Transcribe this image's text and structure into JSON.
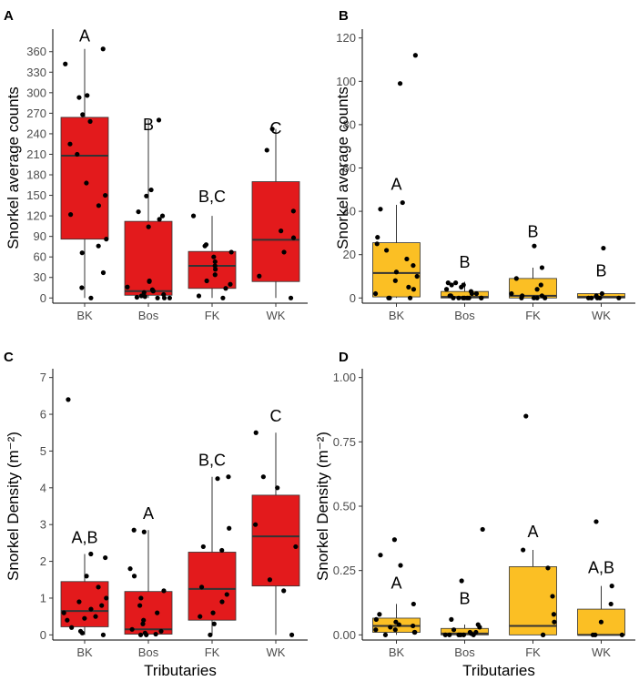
{
  "colors": {
    "red": "#e31a1c",
    "yellow": "#fbbf24",
    "median": "#333333",
    "point": "#000000"
  },
  "chart_data": [
    {
      "panel": "A",
      "type": "box",
      "fill": "red",
      "ylabel": "Snorkel average counts",
      "xlabel": "",
      "ylim": [
        0,
        380
      ],
      "yticks": [
        0,
        30,
        60,
        90,
        120,
        150,
        180,
        210,
        240,
        270,
        300,
        330,
        360
      ],
      "categories": [
        "BK",
        "Bos",
        "FK",
        "WK"
      ],
      "boxes": [
        {
          "q1": 86,
          "median": 208,
          "q3": 264,
          "low": 0,
          "high": 364
        },
        {
          "q1": 4,
          "median": 10,
          "q3": 112,
          "low": 0,
          "high": 260
        },
        {
          "q1": 14,
          "median": 47,
          "q3": 68,
          "low": 0,
          "high": 120
        },
        {
          "q1": 24,
          "median": 85,
          "q3": 170,
          "low": 0,
          "high": 247
        }
      ],
      "letters": [
        "A",
        "B",
        "B,C",
        "C"
      ],
      "letter_values": [
        375,
        245,
        140,
        240
      ],
      "points": [
        [
          364,
          342,
          296,
          293,
          268,
          258,
          225,
          210,
          168,
          150,
          135,
          122,
          86,
          76,
          66,
          37,
          15,
          0
        ],
        [
          260,
          158,
          149,
          126,
          120,
          115,
          104,
          25,
          24,
          16,
          12,
          10,
          8,
          5,
          3,
          2,
          1,
          0,
          0,
          0
        ],
        [
          120,
          78,
          76,
          67,
          60,
          53,
          47,
          42,
          34,
          25,
          20,
          14,
          3,
          0
        ],
        [
          247,
          216,
          127,
          98,
          88,
          67,
          32,
          0
        ]
      ]
    },
    {
      "panel": "B",
      "type": "box",
      "fill": "yellow",
      "ylabel": "Snorkel average counts",
      "xlabel": "",
      "ylim": [
        0,
        120
      ],
      "yticks": [
        0,
        20,
        40,
        60,
        80,
        100,
        120
      ],
      "categories": [
        "BK",
        "Bos",
        "FK",
        "WK"
      ],
      "boxes": [
        {
          "q1": 0.5,
          "median": 11.5,
          "q3": 25.5,
          "low": 0,
          "high": 43
        },
        {
          "q1": 0,
          "median": 0.5,
          "q3": 3,
          "low": 0,
          "high": 7.5
        },
        {
          "q1": 0,
          "median": 1,
          "q3": 9,
          "low": 0,
          "high": 14
        },
        {
          "q1": 0,
          "median": 0.5,
          "q3": 2,
          "low": 0,
          "high": 3
        }
      ],
      "letters": [
        "A",
        "B",
        "B",
        "B"
      ],
      "letter_values": [
        50,
        14,
        28,
        10
      ],
      "points": [
        [
          112,
          99,
          44,
          41,
          28,
          25,
          22,
          18,
          15,
          12,
          10,
          8,
          5,
          4,
          2,
          0,
          0,
          0
        ],
        [
          7,
          7,
          6,
          6,
          5,
          4,
          3,
          2,
          2,
          1,
          1,
          0,
          0,
          0,
          0,
          0,
          0,
          0,
          0
        ],
        [
          24,
          14,
          9,
          6,
          4,
          2,
          1,
          1,
          0,
          0,
          0,
          0
        ],
        [
          23,
          2,
          1,
          0,
          0,
          0,
          0,
          0
        ]
      ]
    },
    {
      "panel": "C",
      "type": "box",
      "fill": "red",
      "ylabel": "Snorkel Density (m⁻²)",
      "xlabel": "Tributaries",
      "ylim": [
        0,
        7
      ],
      "yticks": [
        0,
        1,
        2,
        3,
        4,
        5,
        6,
        7
      ],
      "categories": [
        "BK",
        "Bos",
        "FK",
        "WK"
      ],
      "boxes": [
        {
          "q1": 0.22,
          "median": 0.65,
          "q3": 1.45,
          "low": 0,
          "high": 2.2
        },
        {
          "q1": 0.02,
          "median": 0.15,
          "q3": 1.18,
          "low": 0,
          "high": 2.85
        },
        {
          "q1": 0.4,
          "median": 1.25,
          "q3": 2.25,
          "low": 0,
          "high": 4.3
        },
        {
          "q1": 1.33,
          "median": 2.68,
          "q3": 3.8,
          "low": 0,
          "high": 5.5
        }
      ],
      "letters": [
        "A,B",
        "A",
        "B,C",
        "C"
      ],
      "letter_values": [
        2.5,
        3.15,
        4.6,
        5.8
      ],
      "points": [
        [
          6.4,
          2.2,
          2.1,
          1.6,
          1.3,
          1.0,
          0.9,
          0.8,
          0.7,
          0.6,
          0.5,
          0.45,
          0.4,
          0.2,
          0.1,
          0.05,
          0.0
        ],
        [
          2.85,
          2.8,
          1.8,
          1.6,
          1.2,
          1.0,
          0.8,
          0.6,
          0.4,
          0.3,
          0.15,
          0.1,
          0.05,
          0.02,
          0.0,
          0.0
        ],
        [
          4.3,
          4.25,
          2.9,
          2.4,
          2.3,
          1.3,
          1.1,
          0.9,
          0.6,
          0.5,
          0.3,
          0.0
        ],
        [
          5.5,
          4.3,
          4.0,
          3.0,
          2.4,
          1.5,
          1.2,
          0.0
        ]
      ]
    },
    {
      "panel": "D",
      "type": "box",
      "fill": "yellow",
      "ylabel": "Snorkel Density (m⁻²)",
      "xlabel": "Tributaries",
      "ylim": [
        0,
        1.0
      ],
      "yticks": [
        0,
        0.25,
        0.5,
        0.75,
        1.0
      ],
      "ytick_labels": [
        "0.00",
        "0.25",
        "0.50",
        "0.75",
        "1.00"
      ],
      "categories": [
        "BK",
        "Bos",
        "FK",
        "WK"
      ],
      "boxes": [
        {
          "q1": 0.01,
          "median": 0.035,
          "q3": 0.065,
          "low": 0,
          "high": 0.12
        },
        {
          "q1": 0,
          "median": 0.005,
          "q3": 0.025,
          "low": 0,
          "high": 0.04
        },
        {
          "q1": 0,
          "median": 0.035,
          "q3": 0.265,
          "low": 0,
          "high": 0.33
        },
        {
          "q1": 0,
          "median": 0.0,
          "q3": 0.1,
          "low": 0,
          "high": 0.19
        }
      ],
      "letters": [
        "A",
        "B",
        "A",
        "A,B"
      ],
      "letter_values": [
        0.18,
        0.12,
        0.38,
        0.24
      ],
      "points": [
        [
          0.37,
          0.31,
          0.27,
          0.12,
          0.08,
          0.06,
          0.05,
          0.04,
          0.035,
          0.03,
          0.02,
          0.02,
          0.01,
          0.01,
          0.0
        ],
        [
          0.41,
          0.21,
          0.06,
          0.04,
          0.03,
          0.02,
          0.01,
          0.01,
          0.005,
          0.0,
          0.0,
          0.0,
          0.0,
          0.0,
          0.0
        ],
        [
          0.85,
          0.33,
          0.26,
          0.15,
          0.08,
          0.05,
          0.0,
          0.0
        ],
        [
          0.44,
          0.19,
          0.12,
          0.05,
          0.0,
          0.0,
          0.0
        ]
      ]
    }
  ]
}
